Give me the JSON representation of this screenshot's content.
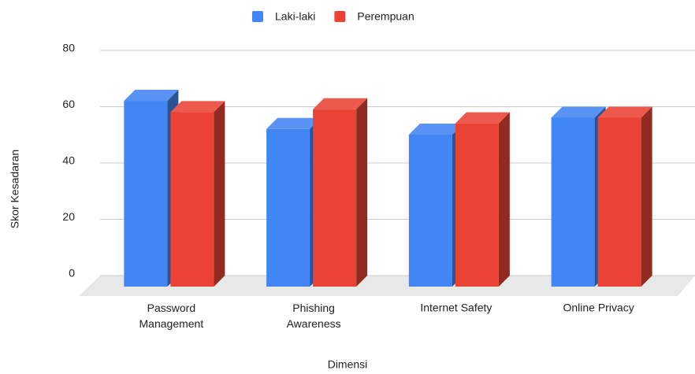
{
  "chart_data": {
    "type": "bar3d",
    "categories": [
      "Password Management",
      "Phishing Awareness",
      "Internet Safety",
      "Online Privacy"
    ],
    "series": [
      {
        "name": "Laki-laki",
        "color": "#4285f4",
        "values": [
          66,
          56,
          54,
          60
        ]
      },
      {
        "name": "Perempuan",
        "color": "#ea4335",
        "values": [
          62,
          63,
          58,
          60
        ]
      }
    ],
    "ylim": [
      0,
      80
    ],
    "yticks": [
      0,
      20,
      40,
      60,
      80
    ],
    "grid": true,
    "y_label": "Skor Kesadaran",
    "x_label": "Dimensi",
    "legend": "top"
  }
}
